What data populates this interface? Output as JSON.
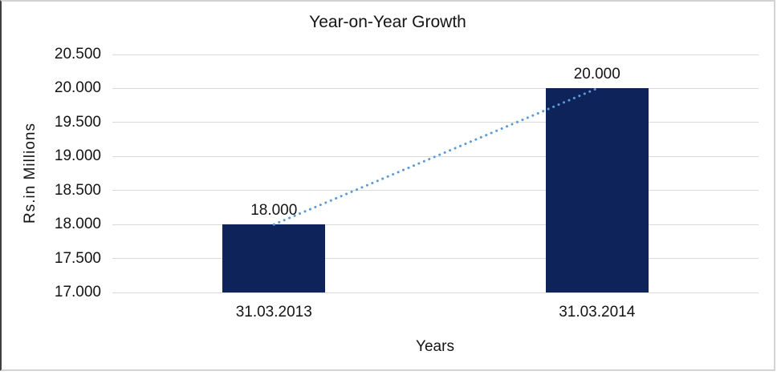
{
  "chart_data": {
    "type": "bar",
    "title": "Year-on-Year Growth",
    "xlabel": "Years",
    "ylabel": "Rs.in Millions",
    "categories": [
      "31.03.2013",
      "31.03.2014"
    ],
    "series": [
      {
        "name": "Year-on-Year Growth",
        "values": [
          18000,
          20000
        ]
      }
    ],
    "data_labels": [
      "18.000",
      "20.000"
    ],
    "ylim": [
      17000,
      20500
    ],
    "ytick_step": 500,
    "ytick_labels_top_to_bottom": [
      "20.500",
      "20.000",
      "19.500",
      "19.000",
      "18.500",
      "18.000",
      "17.500",
      "17.000"
    ],
    "grid": true,
    "legend": "none",
    "trendline": {
      "style": "dotted",
      "from_value": 18000,
      "to_value": 20000
    },
    "colors": {
      "bar": "#0d2359",
      "trendline": "#5b9bd5",
      "gridline": "#d9d9d9",
      "text": "#141414"
    }
  }
}
